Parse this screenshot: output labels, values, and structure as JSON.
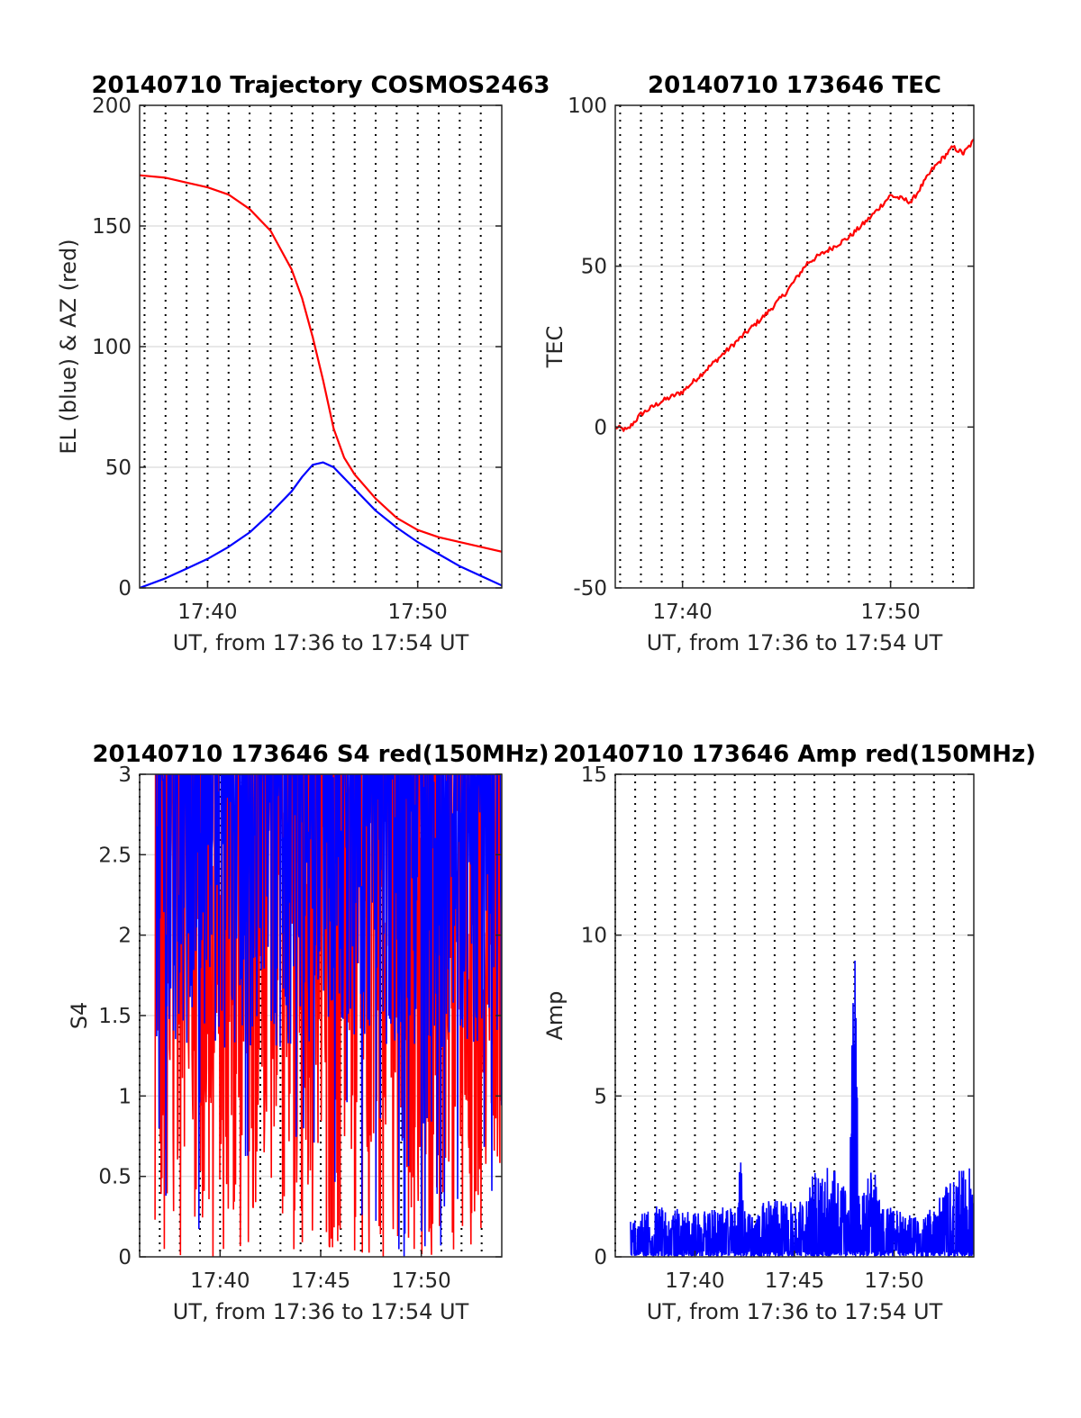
{
  "chart_data": [
    {
      "type": "line",
      "title": "20140710 Trajectory COSMOS2463",
      "xlabel": "UT, from 17:36 to 17:54 UT",
      "ylabel": "EL (blue) & AZ (red)",
      "xlim": [
        "17:36:46",
        "17:54:00"
      ],
      "ylim": [
        0,
        200
      ],
      "xticks": [
        "17:40",
        "17:50"
      ],
      "yticks": [
        "0",
        "50",
        "100",
        "150",
        "200"
      ],
      "grid": "horizontal solid at y-ticks, dotted vertical every minute",
      "series": [
        {
          "name": "EL (blue)",
          "color": "#0000ff",
          "x": [
            "17:36:46",
            "17:38:00",
            "17:39:00",
            "17:40:00",
            "17:41:00",
            "17:42:00",
            "17:43:00",
            "17:44:00",
            "17:44:30",
            "17:45:00",
            "17:45:30",
            "17:46:00",
            "17:47:00",
            "17:48:00",
            "17:49:00",
            "17:50:00",
            "17:51:00",
            "17:52:00",
            "17:53:00",
            "17:54:00"
          ],
          "y": [
            0,
            4,
            8,
            12,
            17,
            23,
            31,
            40,
            46,
            51,
            52,
            50,
            41,
            32,
            25,
            19,
            14,
            9,
            5,
            1
          ]
        },
        {
          "name": "AZ (red)",
          "color": "#ff0000",
          "x": [
            "17:36:46",
            "17:38:00",
            "17:39:00",
            "17:40:00",
            "17:41:00",
            "17:42:00",
            "17:43:00",
            "17:44:00",
            "17:44:30",
            "17:45:00",
            "17:45:30",
            "17:46:00",
            "17:46:30",
            "17:47:00",
            "17:48:00",
            "17:49:00",
            "17:50:00",
            "17:51:00",
            "17:52:00",
            "17:53:00",
            "17:54:00"
          ],
          "y": [
            171,
            170,
            168,
            166,
            163,
            157,
            148,
            132,
            120,
            104,
            86,
            66,
            54,
            47,
            37,
            29,
            24,
            21,
            19,
            17,
            15
          ]
        }
      ]
    },
    {
      "type": "line",
      "title": "20140710 173646 TEC",
      "xlabel": "UT, from 17:36 to 17:54 UT",
      "ylabel": "TEC",
      "xlim": [
        "17:36:46",
        "17:54:00"
      ],
      "ylim": [
        -50,
        100
      ],
      "xticks": [
        "17:40",
        "17:50"
      ],
      "yticks": [
        "-50",
        "0",
        "50",
        "100"
      ],
      "grid": "horizontal solid at y-ticks, dotted vertical every minute",
      "series": [
        {
          "color": "#ff0000",
          "x": [
            "17:36:46",
            "17:37:20",
            "17:38:00",
            "17:39:00",
            "17:40:00",
            "17:41:00",
            "17:42:00",
            "17:43:00",
            "17:44:00",
            "17:45:00",
            "17:46:00",
            "17:47:00",
            "17:48:00",
            "17:49:00",
            "17:50:00",
            "17:51:00",
            "17:52:00",
            "17:53:00",
            "17:53:30",
            "17:54:00"
          ],
          "y": [
            0,
            -1,
            4,
            8,
            11,
            17,
            23,
            29,
            35,
            42,
            51,
            55,
            59,
            65,
            72,
            70,
            80,
            87,
            85,
            89
          ]
        }
      ]
    },
    {
      "type": "line",
      "title": "20140710 173646 S4 red(150MHz)",
      "xlabel": "UT, from 17:36 to 17:54 UT",
      "ylabel": "S4",
      "xlim": [
        "17:36:00",
        "17:54:00"
      ],
      "ylim": [
        0,
        3
      ],
      "xticks": [
        "17:40",
        "17:45",
        "17:50"
      ],
      "yticks": [
        "0",
        "0.5",
        "1",
        "1.5",
        "2",
        "2.5",
        "3"
      ],
      "grid": "horizontal solid at y-ticks, dotted vertical every minute",
      "series": [
        {
          "name": "red (150MHz)",
          "color": "#ff0000",
          "description_range": [
            0,
            3
          ]
        },
        {
          "name": "blue",
          "color": "#0000ff",
          "description_range": [
            0,
            3
          ]
        }
      ]
    },
    {
      "type": "line",
      "title": "20140710 173646 Amp red(150MHz)",
      "xlabel": "UT, from 17:36 to 17:54 UT",
      "ylabel": "Amp",
      "xlim": [
        "17:36:00",
        "17:54:00"
      ],
      "ylim": [
        0,
        15
      ],
      "xticks": [
        "17:40",
        "17:45",
        "17:50"
      ],
      "yticks": [
        "0",
        "5",
        "10",
        "15"
      ],
      "grid": "horizontal solid at y-ticks, dotted vertical every minute",
      "series": [
        {
          "color": "#0000ff",
          "x": [
            "17:36:46",
            "17:38:00",
            "17:40:00",
            "17:41:00",
            "17:42:00",
            "17:42:15",
            "17:42:30",
            "17:44:00",
            "17:45:30",
            "17:46:00",
            "17:47:00",
            "17:47:45",
            "17:48:00",
            "17:48:15",
            "17:49:00",
            "17:49:10",
            "17:50:00",
            "17:51:00",
            "17:52:00",
            "17:53:00",
            "17:54:00"
          ],
          "y": [
            1.2,
            1.6,
            1.4,
            1.5,
            1.6,
            3.5,
            1.5,
            1.8,
            1.7,
            2.7,
            2.9,
            1.8,
            10.9,
            1.8,
            3.1,
            2.0,
            1.5,
            1.3,
            1.6,
            2.6,
            2.9
          ]
        }
      ]
    }
  ]
}
